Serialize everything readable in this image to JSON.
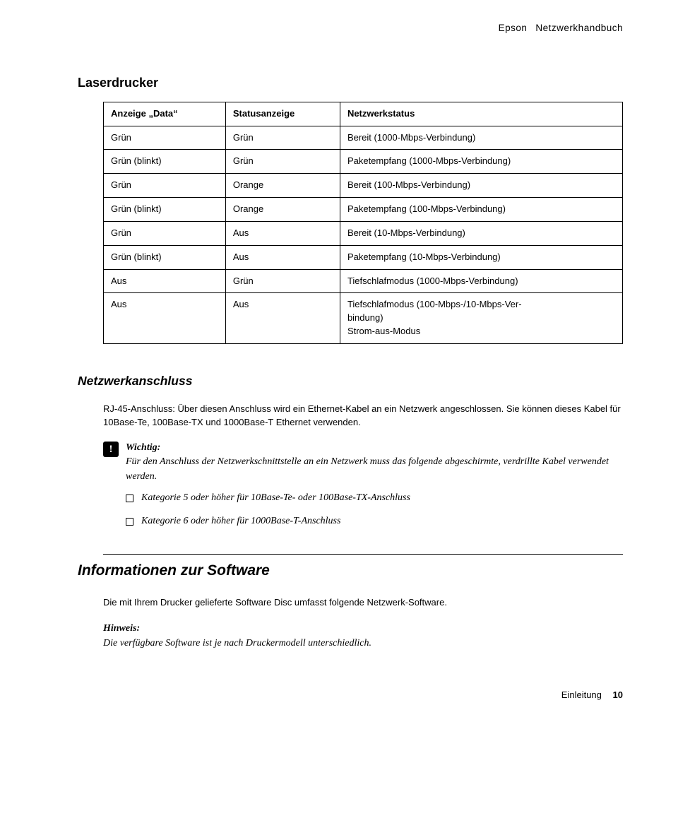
{
  "header": {
    "brand": "Epson",
    "doc_title": "Netzwerkhandbuch"
  },
  "section1_title": "Laserdrucker",
  "table": {
    "headers": [
      "Anzeige „Data“",
      "Statusanzeige",
      "Netzwerkstatus"
    ],
    "rows": [
      [
        "Grün",
        "Grün",
        "Bereit (1000-Mbps-Verbindung)"
      ],
      [
        "Grün (blinkt)",
        "Grün",
        "Paketempfang (1000-Mbps-Verbindung)"
      ],
      [
        "Grün",
        "Orange",
        "Bereit (100-Mbps-Verbindung)"
      ],
      [
        "Grün (blinkt)",
        "Orange",
        "Paketempfang (100-Mbps-Verbindung)"
      ],
      [
        "Grün",
        "Aus",
        "Bereit (10-Mbps-Verbindung)"
      ],
      [
        "Grün (blinkt)",
        "Aus",
        "Paketempfang (10-Mbps-Verbindung)"
      ],
      [
        "Aus",
        "Grün",
        "Tiefschlafmodus (1000-Mbps-Verbindung)"
      ],
      [
        "Aus",
        "Aus",
        "Tiefschlafmodus (100-Mbps-/10-Mbps-Ver-\nbindung)\nStrom-aus-Modus"
      ]
    ]
  },
  "subsection_title": "Netzwerkanschluss",
  "rj45_para": "RJ-45-Anschluss: Über diesen Anschluss wird ein Ethernet-Kabel an ein Netzwerk angeschlossen. Sie können dieses Kabel für 10Base-Te, 100Base-TX und 1000Base-T Ethernet verwenden.",
  "wichtig": {
    "label": "Wichtig:",
    "text": "Für den Anschluss der Netzwerkschnittstelle an ein Netzwerk muss das folgende abgeschirmte, verdrillte Kabel verwendet werden."
  },
  "bullets": [
    "Kategorie 5 oder höher für 10Base-Te- oder 100Base-TX-Anschluss",
    "Kategorie 6 oder höher für 1000Base-T-Anschluss"
  ],
  "big_title": "Informationen zur Software",
  "software_para": "Die mit Ihrem Drucker gelieferte Software Disc umfasst folgende Netzwerk-Software.",
  "hinweis": {
    "label": "Hinweis:",
    "text": "Die verfügbare Software ist je nach Druckermodell unterschiedlich."
  },
  "footer": {
    "chapter": "Einleitung",
    "page": "10"
  }
}
